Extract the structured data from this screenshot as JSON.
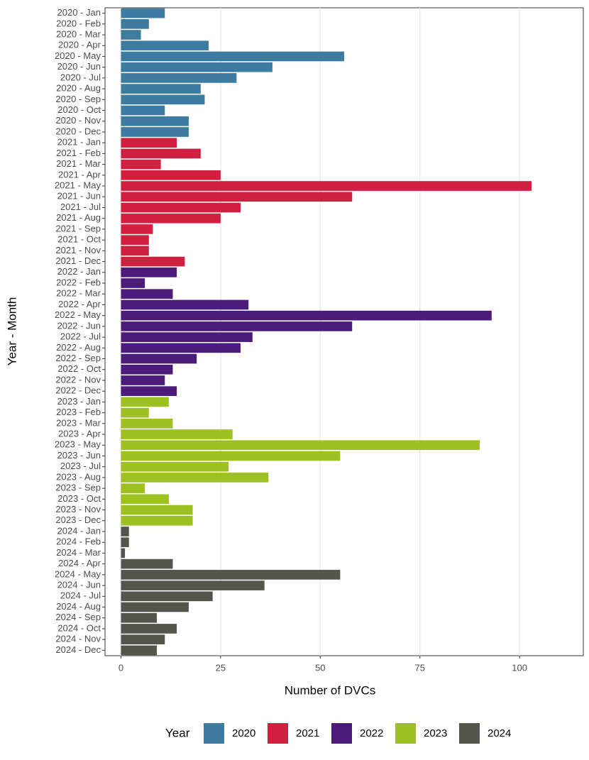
{
  "chart_data": {
    "type": "bar",
    "orientation": "horizontal",
    "x_label": "Number of DVCs",
    "y_label": "Year - Month",
    "legend_title": "Year",
    "legend_position": "bottom",
    "grid": true,
    "categories": [
      "2020 - Jan",
      "2020 - Feb",
      "2020 - Mar",
      "2020 - Apr",
      "2020 - May",
      "2020 - Jun",
      "2020 - Jul",
      "2020 - Aug",
      "2020 - Sep",
      "2020 - Oct",
      "2020 - Nov",
      "2020 - Dec",
      "2021 - Jan",
      "2021 - Feb",
      "2021 - Mar",
      "2021 - Apr",
      "2021 - May",
      "2021 - Jun",
      "2021 - Jul",
      "2021 - Aug",
      "2021 - Sep",
      "2021 - Oct",
      "2021 - Nov",
      "2021 - Dec",
      "2022 - Jan",
      "2022 - Feb",
      "2022 - Mar",
      "2022 - Apr",
      "2022 - May",
      "2022 - Jun",
      "2022 - Jul",
      "2022 - Aug",
      "2022 - Sep",
      "2022 - Oct",
      "2022 - Nov",
      "2022 - Dec",
      "2023 - Jan",
      "2023 - Feb",
      "2023 - Mar",
      "2023 - Apr",
      "2023 - May",
      "2023 - Jun",
      "2023 - Jul",
      "2023 - Aug",
      "2023 - Sep",
      "2023 - Oct",
      "2023 - Nov",
      "2023 - Dec",
      "2024 - Jan",
      "2024 - Feb",
      "2024 - Mar",
      "2024 - Apr",
      "2024 - May",
      "2024 - Jun",
      "2024 - Jul",
      "2024 - Aug",
      "2024 - Sep",
      "2024 - Oct",
      "2024 - Nov",
      "2024 - Dec"
    ],
    "series": [
      {
        "name": "2020",
        "color": "#3d7ba0",
        "values": [
          11,
          7,
          5,
          22,
          56,
          38,
          29,
          20,
          21,
          11,
          17,
          17,
          null,
          null,
          null,
          null,
          null,
          null,
          null,
          null,
          null,
          null,
          null,
          null,
          null,
          null,
          null,
          null,
          null,
          null,
          null,
          null,
          null,
          null,
          null,
          null,
          null,
          null,
          null,
          null,
          null,
          null,
          null,
          null,
          null,
          null,
          null,
          null,
          null,
          null,
          null,
          null,
          null,
          null,
          null,
          null,
          null,
          null,
          null,
          null
        ]
      },
      {
        "name": "2021",
        "color": "#d0203f",
        "values": [
          null,
          null,
          null,
          null,
          null,
          null,
          null,
          null,
          null,
          null,
          null,
          null,
          14,
          20,
          10,
          25,
          103,
          58,
          30,
          25,
          8,
          7,
          7,
          16,
          null,
          null,
          null,
          null,
          null,
          null,
          null,
          null,
          null,
          null,
          null,
          null,
          null,
          null,
          null,
          null,
          null,
          null,
          null,
          null,
          null,
          null,
          null,
          null,
          null,
          null,
          null,
          null,
          null,
          null,
          null,
          null,
          null,
          null,
          null,
          null
        ]
      },
      {
        "name": "2022",
        "color": "#4b1c7a",
        "values": [
          null,
          null,
          null,
          null,
          null,
          null,
          null,
          null,
          null,
          null,
          null,
          null,
          null,
          null,
          null,
          null,
          null,
          null,
          null,
          null,
          null,
          null,
          null,
          null,
          14,
          6,
          13,
          32,
          93,
          58,
          33,
          30,
          19,
          13,
          11,
          14,
          null,
          null,
          null,
          null,
          null,
          null,
          null,
          null,
          null,
          null,
          null,
          null,
          null,
          null,
          null,
          null,
          null,
          null,
          null,
          null,
          null,
          null,
          null,
          null
        ]
      },
      {
        "name": "2023",
        "color": "#9dc123",
        "values": [
          null,
          null,
          null,
          null,
          null,
          null,
          null,
          null,
          null,
          null,
          null,
          null,
          null,
          null,
          null,
          null,
          null,
          null,
          null,
          null,
          null,
          null,
          null,
          null,
          null,
          null,
          null,
          null,
          null,
          null,
          null,
          null,
          null,
          null,
          null,
          null,
          12,
          7,
          13,
          28,
          90,
          55,
          27,
          37,
          6,
          12,
          18,
          18,
          null,
          null,
          null,
          null,
          null,
          null,
          null,
          null,
          null,
          null,
          null,
          null
        ]
      },
      {
        "name": "2024",
        "color": "#55564b",
        "values": [
          null,
          null,
          null,
          null,
          null,
          null,
          null,
          null,
          null,
          null,
          null,
          null,
          null,
          null,
          null,
          null,
          null,
          null,
          null,
          null,
          null,
          null,
          null,
          null,
          null,
          null,
          null,
          null,
          null,
          null,
          null,
          null,
          null,
          null,
          null,
          null,
          null,
          null,
          null,
          null,
          null,
          null,
          null,
          null,
          null,
          null,
          null,
          null,
          2,
          2,
          1,
          13,
          55,
          36,
          23,
          17,
          9,
          14,
          11,
          9
        ]
      }
    ],
    "xlim": [
      -4,
      116
    ],
    "xticks": [
      0,
      25,
      50,
      75,
      100
    ]
  }
}
